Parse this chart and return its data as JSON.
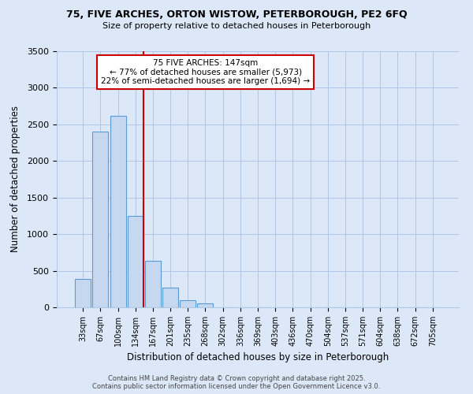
{
  "title": "75, FIVE ARCHES, ORTON WISTOW, PETERBOROUGH, PE2 6FQ",
  "subtitle": "Size of property relative to detached houses in Peterborough",
  "xlabel": "Distribution of detached houses by size in Peterborough",
  "ylabel": "Number of detached properties",
  "bin_labels": [
    "33sqm",
    "67sqm",
    "100sqm",
    "134sqm",
    "167sqm",
    "201sqm",
    "235sqm",
    "268sqm",
    "302sqm",
    "336sqm",
    "369sqm",
    "403sqm",
    "436sqm",
    "470sqm",
    "504sqm",
    "537sqm",
    "571sqm",
    "604sqm",
    "638sqm",
    "672sqm",
    "705sqm"
  ],
  "bar_values": [
    390,
    2400,
    2620,
    1250,
    640,
    270,
    100,
    50,
    0,
    0,
    0,
    0,
    0,
    0,
    0,
    0,
    0,
    0,
    0,
    0,
    0
  ],
  "bar_color": "#c5d8f0",
  "bar_edge_color": "#5b9bd5",
  "vline_color": "#cc0000",
  "annotation_title": "75 FIVE ARCHES: 147sqm",
  "annotation_line1": "← 77% of detached houses are smaller (5,973)",
  "annotation_line2": "22% of semi-detached houses are larger (1,694) →",
  "annotation_box_color": "#ffffff",
  "annotation_box_edge": "#cc0000",
  "ylim": [
    0,
    3500
  ],
  "yticks": [
    0,
    500,
    1000,
    1500,
    2000,
    2500,
    3000,
    3500
  ],
  "background_color": "#dce8f8",
  "grid_color": "#aec8e8",
  "footer_line1": "Contains HM Land Registry data © Crown copyright and database right 2025.",
  "footer_line2": "Contains public sector information licensed under the Open Government Licence v3.0."
}
